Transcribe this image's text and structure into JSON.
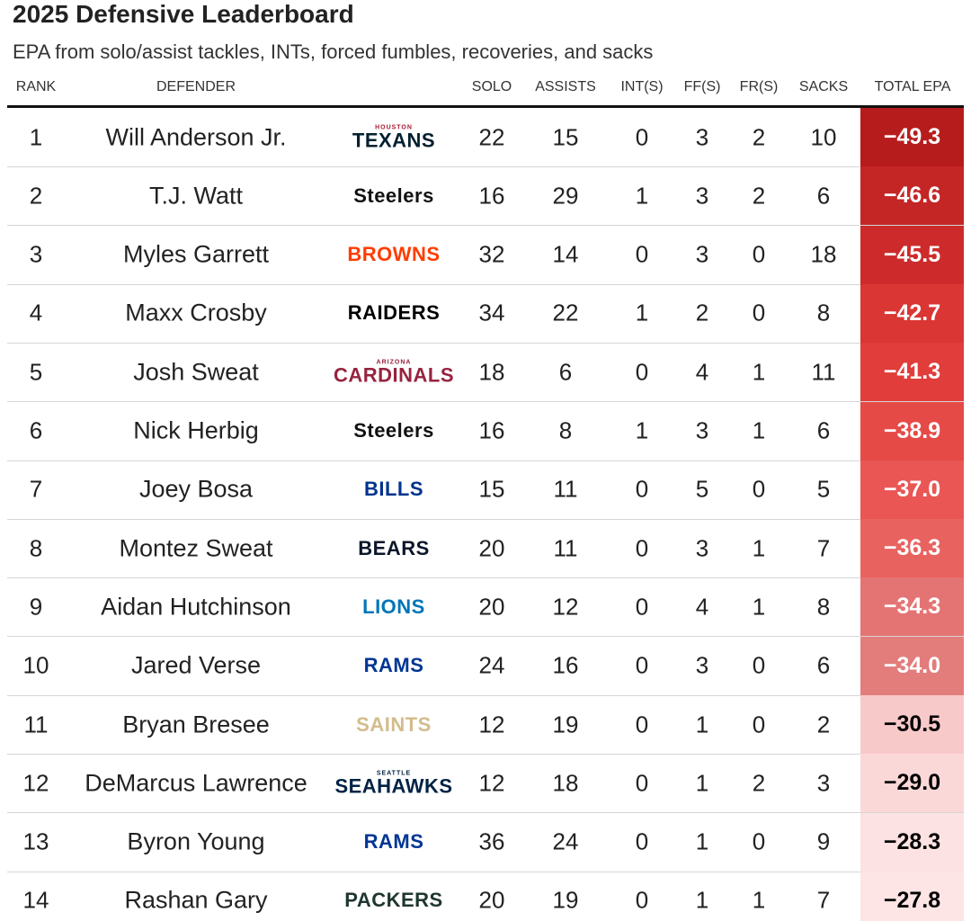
{
  "header": {
    "title": "2025 Defensive Leaderboard",
    "subtitle": "EPA from solo/assist tackles, INTs, forced fumbles, recoveries, and sacks"
  },
  "table": {
    "columns": [
      "RANK",
      "DEFENDER",
      "SOLO",
      "ASSISTS",
      "INT(S)",
      "FF(S)",
      "FR(S)",
      "SACKS",
      "TOTAL EPA"
    ],
    "rows": [
      {
        "rank": "1",
        "defender": "Will Anderson Jr.",
        "logo": {
          "top": "HOUSTON",
          "main": "TEXANS",
          "color": "#03202f",
          "top_color": "#a71930"
        },
        "stats": [
          "22",
          "15",
          "0",
          "3",
          "2",
          "10"
        ],
        "epa": "−49.3",
        "epa_color": "#b71c1c",
        "epa_text": "#ffffff"
      },
      {
        "rank": "2",
        "defender": "T.J. Watt",
        "logo": {
          "main": "Steelers",
          "color": "#111111"
        },
        "stats": [
          "16",
          "29",
          "1",
          "3",
          "2",
          "6"
        ],
        "epa": "−46.6",
        "epa_color": "#c42525",
        "epa_text": "#ffffff"
      },
      {
        "rank": "3",
        "defender": "Myles Garrett",
        "logo": {
          "main": "BROWNS",
          "color": "#ff3c00"
        },
        "stats": [
          "32",
          "14",
          "0",
          "3",
          "0",
          "18"
        ],
        "epa": "−45.5",
        "epa_color": "#cd2b2b",
        "epa_text": "#ffffff"
      },
      {
        "rank": "4",
        "defender": "Maxx Crosby",
        "logo": {
          "main": "RAIDERS",
          "color": "#000000"
        },
        "stats": [
          "34",
          "22",
          "1",
          "2",
          "0",
          "8"
        ],
        "epa": "−42.7",
        "epa_color": "#d93634",
        "epa_text": "#ffffff"
      },
      {
        "rank": "5",
        "defender": "Josh Sweat",
        "logo": {
          "top": "ARIZONA",
          "main": "CARDINALS",
          "color": "#97233f",
          "top_color": "#97233f"
        },
        "stats": [
          "18",
          "6",
          "0",
          "4",
          "1",
          "11"
        ],
        "epa": "−41.3",
        "epa_color": "#e03d3b",
        "epa_text": "#ffffff"
      },
      {
        "rank": "6",
        "defender": "Nick Herbig",
        "logo": {
          "main": "Steelers",
          "color": "#111111"
        },
        "stats": [
          "16",
          "8",
          "1",
          "3",
          "1",
          "6"
        ],
        "epa": "−38.9",
        "epa_color": "#e64a47",
        "epa_text": "#ffffff"
      },
      {
        "rank": "7",
        "defender": "Joey Bosa",
        "logo": {
          "main": "BILLS",
          "color": "#00338d"
        },
        "stats": [
          "15",
          "11",
          "0",
          "5",
          "0",
          "5"
        ],
        "epa": "−37.0",
        "epa_color": "#e95654",
        "epa_text": "#ffffff"
      },
      {
        "rank": "8",
        "defender": "Montez Sweat",
        "logo": {
          "main": "BEARS",
          "color": "#0b162a"
        },
        "stats": [
          "20",
          "11",
          "0",
          "3",
          "1",
          "7"
        ],
        "epa": "−36.3",
        "epa_color": "#e86260",
        "epa_text": "#ffffff"
      },
      {
        "rank": "9",
        "defender": "Aidan Hutchinson",
        "logo": {
          "main": "LIONS",
          "color": "#0076b6"
        },
        "stats": [
          "20",
          "12",
          "0",
          "4",
          "1",
          "8"
        ],
        "epa": "−34.3",
        "epa_color": "#e47473",
        "epa_text": "#ffffff"
      },
      {
        "rank": "10",
        "defender": "Jared Verse",
        "logo": {
          "main": "RAMS",
          "color": "#003594"
        },
        "stats": [
          "24",
          "16",
          "0",
          "3",
          "0",
          "6"
        ],
        "epa": "−34.0",
        "epa_color": "#e27d7c",
        "epa_text": "#ffffff"
      },
      {
        "rank": "11",
        "defender": "Bryan Bresee",
        "logo": {
          "main": "SAINTS",
          "color": "#d3bc8d"
        },
        "stats": [
          "12",
          "19",
          "0",
          "1",
          "0",
          "2"
        ],
        "epa": "−30.5",
        "epa_color": "#f8c9c9",
        "epa_text": "#000000"
      },
      {
        "rank": "12",
        "defender": "DeMarcus Lawrence",
        "logo": {
          "top": "SEATTLE",
          "main": "SEAHAWKS",
          "color": "#002244",
          "top_color": "#002244"
        },
        "stats": [
          "12",
          "18",
          "0",
          "1",
          "2",
          "3"
        ],
        "epa": "−29.0",
        "epa_color": "#fbd8d8",
        "epa_text": "#000000"
      },
      {
        "rank": "13",
        "defender": "Byron Young",
        "logo": {
          "main": "RAMS",
          "color": "#003594"
        },
        "stats": [
          "36",
          "24",
          "0",
          "1",
          "0",
          "9"
        ],
        "epa": "−28.3",
        "epa_color": "#fce2e2",
        "epa_text": "#000000"
      },
      {
        "rank": "14",
        "defender": "Rashan Gary",
        "logo": {
          "main": "PACKERS",
          "color": "#203731"
        },
        "stats": [
          "20",
          "19",
          "0",
          "1",
          "1",
          "7"
        ],
        "epa": "−27.8",
        "epa_color": "#fde5e5",
        "epa_text": "#000000"
      }
    ]
  }
}
